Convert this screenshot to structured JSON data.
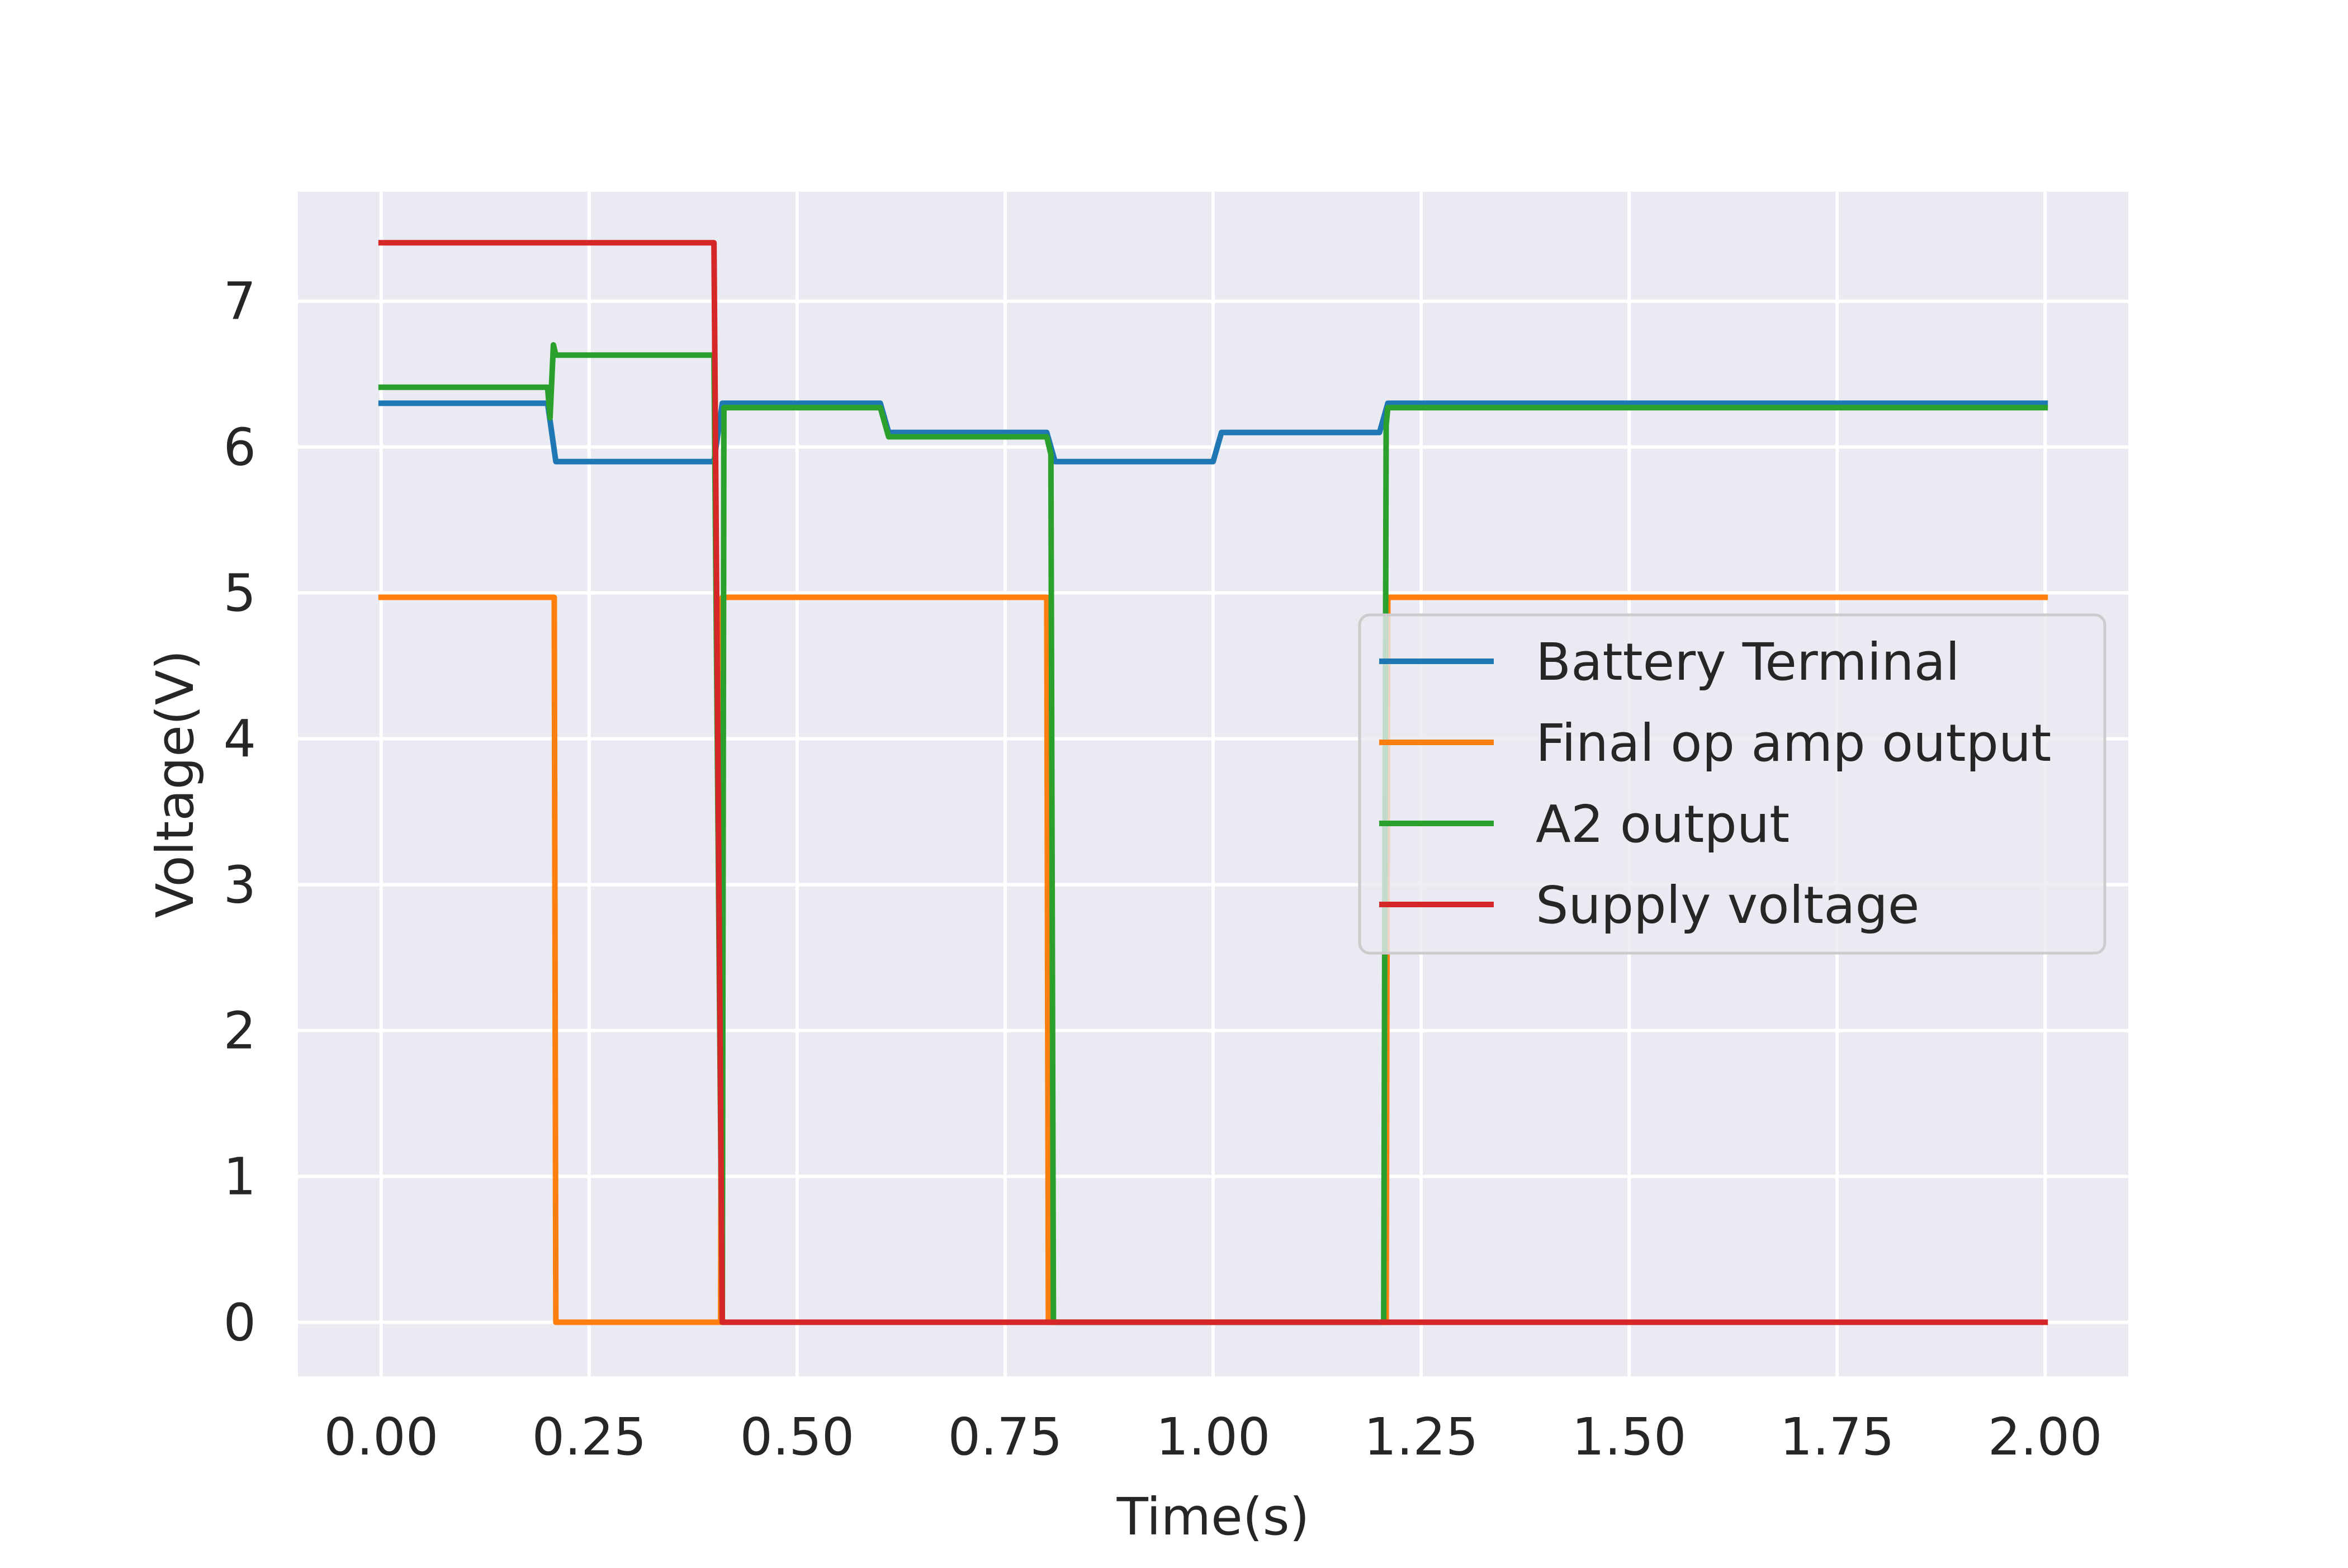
{
  "chart_data": {
    "type": "line",
    "title": "",
    "xlabel": "Time(s)",
    "ylabel": "Voltage(V)",
    "xlim": [
      -0.1,
      2.1
    ],
    "ylim": [
      -0.37,
      7.75
    ],
    "x_ticks": [
      0.0,
      0.25,
      0.5,
      0.75,
      1.0,
      1.25,
      1.5,
      1.75,
      2.0
    ],
    "x_tick_labels": [
      "0.00",
      "0.25",
      "0.50",
      "0.75",
      "1.00",
      "1.25",
      "1.50",
      "1.75",
      "2.00"
    ],
    "y_ticks": [
      0,
      1,
      2,
      3,
      4,
      5,
      6,
      7
    ],
    "y_tick_labels": [
      "0",
      "1",
      "2",
      "3",
      "4",
      "5",
      "6",
      "7"
    ],
    "grid": true,
    "legend_position": "center-right",
    "background": "#eaeaf2",
    "series": [
      {
        "name": "Battery Terminal",
        "color": "#1f77b4",
        "points": [
          [
            0.0,
            6.3
          ],
          [
            0.2,
            6.3
          ],
          [
            0.21,
            5.9
          ],
          [
            0.4,
            5.9
          ],
          [
            0.41,
            6.3
          ],
          [
            0.6,
            6.3
          ],
          [
            0.61,
            6.1
          ],
          [
            0.8,
            6.1
          ],
          [
            0.81,
            5.9
          ],
          [
            1.0,
            5.9
          ],
          [
            1.01,
            6.1
          ],
          [
            1.2,
            6.1
          ],
          [
            1.21,
            6.3
          ],
          [
            2.0,
            6.3
          ]
        ]
      },
      {
        "name": "Final op amp output",
        "color": "#ff7f0e",
        "points": [
          [
            0.0,
            4.97
          ],
          [
            0.208,
            4.97
          ],
          [
            0.21,
            0.0
          ],
          [
            0.408,
            0.0
          ],
          [
            0.41,
            4.97
          ],
          [
            0.8,
            4.97
          ],
          [
            0.802,
            0.0
          ],
          [
            1.208,
            0.0
          ],
          [
            1.21,
            4.97
          ],
          [
            2.0,
            4.97
          ]
        ]
      },
      {
        "name": "A2 output",
        "color": "#2ca02c",
        "points": [
          [
            0.0,
            6.41
          ],
          [
            0.2,
            6.41
          ],
          [
            0.203,
            6.2
          ],
          [
            0.207,
            6.7
          ],
          [
            0.21,
            6.63
          ],
          [
            0.4,
            6.63
          ],
          [
            0.41,
            0.0
          ],
          [
            0.412,
            6.27
          ],
          [
            0.6,
            6.27
          ],
          [
            0.61,
            6.07
          ],
          [
            0.8,
            6.07
          ],
          [
            0.805,
            5.95
          ],
          [
            0.808,
            0.0
          ],
          [
            1.205,
            0.0
          ],
          [
            1.208,
            6.15
          ],
          [
            1.21,
            6.27
          ],
          [
            2.0,
            6.27
          ]
        ]
      },
      {
        "name": "Supply voltage",
        "color": "#d62728",
        "points": [
          [
            0.0,
            7.4
          ],
          [
            0.4,
            7.4
          ],
          [
            0.41,
            0.0
          ],
          [
            2.0,
            0.0
          ]
        ]
      }
    ]
  }
}
